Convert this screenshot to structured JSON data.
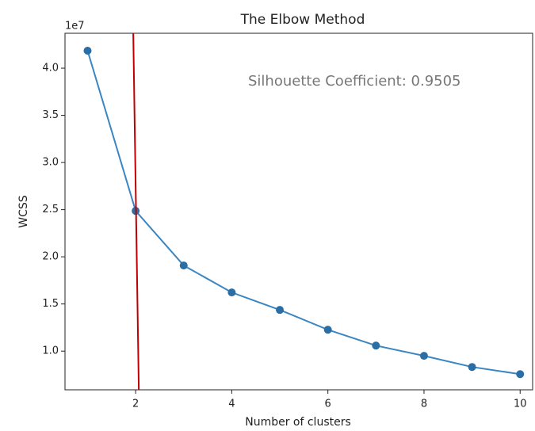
{
  "chart_data": {
    "type": "line",
    "title": "The Elbow Method",
    "xlabel": "Number of clusters",
    "ylabel": "WCSS",
    "y_offset_label": "1e7",
    "annotation": "Silhouette Coefficient: 0.9505",
    "vline": 2,
    "vline_color": "#c00000",
    "x": [
      1,
      2,
      3,
      4,
      5,
      6,
      7,
      8,
      9,
      10
    ],
    "series": [
      {
        "name": "WCSS",
        "color": "#3a86c2",
        "marker_color": "#2b6ea6",
        "values": [
          4.185,
          2.487,
          1.908,
          1.622,
          1.437,
          1.227,
          1.059,
          0.95,
          0.832,
          0.756
        ]
      }
    ],
    "xlim": [
      0.53,
      10.26
    ],
    "ylim": [
      0.59,
      4.37
    ],
    "xticks": [
      2,
      4,
      6,
      8,
      10
    ],
    "yticks": [
      {
        "value": 1,
        "label": "1.0"
      },
      {
        "value": 1.5,
        "label": "1.5"
      },
      {
        "value": 2,
        "label": "2.0"
      },
      {
        "value": 2.5,
        "label": "2.5"
      },
      {
        "value": 3,
        "label": "3.0"
      },
      {
        "value": 3.5,
        "label": "3.5"
      },
      {
        "value": 4,
        "label": "4.0"
      }
    ],
    "grid": false
  }
}
